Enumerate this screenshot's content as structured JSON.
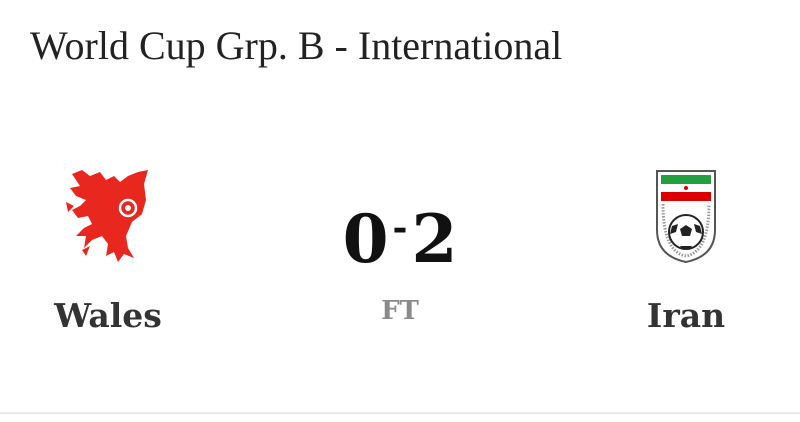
{
  "header": {
    "title": "World Cup Grp. B - International"
  },
  "match": {
    "home": {
      "name": "Wales",
      "score": "0",
      "crest": "wales-dragon-crest-icon",
      "color": "#e8281e"
    },
    "away": {
      "name": "Iran",
      "score": "2",
      "crest": "iran-football-federation-crest-icon",
      "colors": [
        "#239f40",
        "#ffffff",
        "#da0000"
      ]
    },
    "separator": "-",
    "status": "FT"
  }
}
